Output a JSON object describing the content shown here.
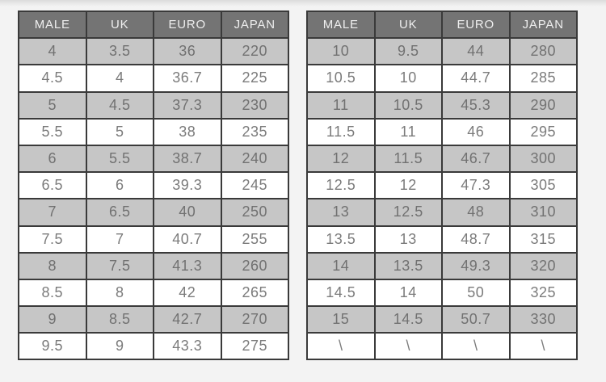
{
  "page": {
    "background": "#f3f3f3"
  },
  "colors": {
    "page_bg": "#f3f3f3",
    "header_bg": "#747474",
    "header_text": "#efefef",
    "row_bg": "#ffffff",
    "row_alt_bg": "#c6c6c6",
    "cell_text": "#7b7b7b",
    "cell_alt_text": "#717171",
    "border": "#3a3a3a"
  },
  "chart_data": [
    {
      "type": "table",
      "name": "size-table-left",
      "headers": [
        "MALE",
        "UK",
        "EURO",
        "JAPAN"
      ],
      "rows": [
        [
          "4",
          "3.5",
          "36",
          "220"
        ],
        [
          "4.5",
          "4",
          "36.7",
          "225"
        ],
        [
          "5",
          "4.5",
          "37.3",
          "230"
        ],
        [
          "5.5",
          "5",
          "38",
          "235"
        ],
        [
          "6",
          "5.5",
          "38.7",
          "240"
        ],
        [
          "6.5",
          "6",
          "39.3",
          "245"
        ],
        [
          "7",
          "6.5",
          "40",
          "250"
        ],
        [
          "7.5",
          "7",
          "40.7",
          "255"
        ],
        [
          "8",
          "7.5",
          "41.3",
          "260"
        ],
        [
          "8.5",
          "8",
          "42",
          "265"
        ],
        [
          "9",
          "8.5",
          "42.7",
          "270"
        ],
        [
          "9.5",
          "9",
          "43.3",
          "275"
        ]
      ]
    },
    {
      "type": "table",
      "name": "size-table-right",
      "headers": [
        "MALE",
        "UK",
        "EURO",
        "JAPAN"
      ],
      "rows": [
        [
          "10",
          "9.5",
          "44",
          "280"
        ],
        [
          "10.5",
          "10",
          "44.7",
          "285"
        ],
        [
          "11",
          "10.5",
          "45.3",
          "290"
        ],
        [
          "11.5",
          "11",
          "46",
          "295"
        ],
        [
          "12",
          "11.5",
          "46.7",
          "300"
        ],
        [
          "12.5",
          "12",
          "47.3",
          "305"
        ],
        [
          "13",
          "12.5",
          "48",
          "310"
        ],
        [
          "13.5",
          "13",
          "48.7",
          "315"
        ],
        [
          "14",
          "13.5",
          "49.3",
          "320"
        ],
        [
          "14.5",
          "14",
          "50",
          "325"
        ],
        [
          "15",
          "14.5",
          "50.7",
          "330"
        ],
        [
          "\\",
          "\\",
          "\\",
          "\\"
        ]
      ]
    }
  ]
}
